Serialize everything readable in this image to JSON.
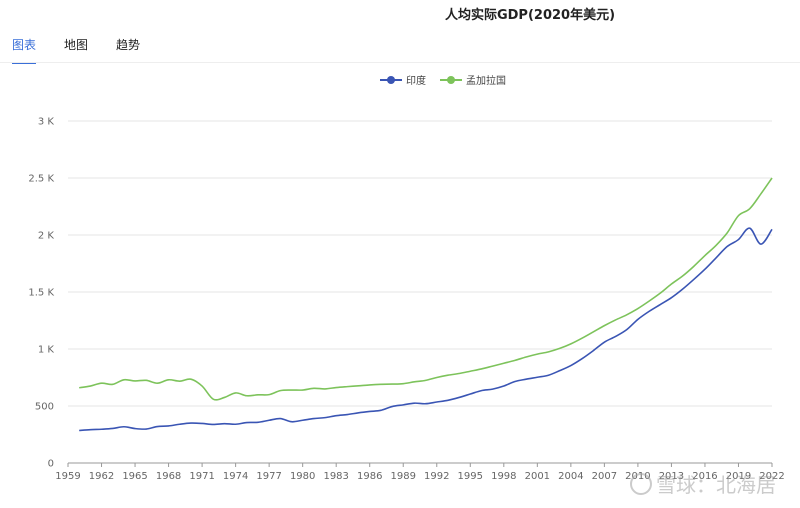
{
  "page": {
    "title": "人均实际GDP(2020年美元)"
  },
  "tabs": [
    {
      "label": "图表",
      "active": true
    },
    {
      "label": "地图",
      "active": false
    },
    {
      "label": "趋势",
      "active": false
    }
  ],
  "watermark": {
    "text": "雪球：北海居"
  },
  "chart_data": {
    "type": "line",
    "title": "人均实际GDP(2020年美元)",
    "xlabel": "",
    "ylabel": "",
    "xlim": [
      1959,
      2022
    ],
    "ylim": [
      0,
      3000
    ],
    "y_ticks": [
      0,
      500,
      1000,
      1500,
      2000,
      2500,
      3000
    ],
    "y_tick_labels": [
      "0",
      "500",
      "1 K",
      "1.5 K",
      "2 K",
      "2.5 K",
      "3 K"
    ],
    "x_ticks": [
      1959,
      1962,
      1965,
      1968,
      1971,
      1974,
      1977,
      1980,
      1983,
      1986,
      1989,
      1992,
      1995,
      1998,
      2001,
      2004,
      2007,
      2010,
      2013,
      2016,
      2019,
      2022
    ],
    "x_tick_labels": [
      "1959",
      "1962",
      "1965",
      "1968",
      "1971",
      "1974",
      "1977",
      "1980",
      "1983",
      "1986",
      "1989",
      "1992",
      "1995",
      "1998",
      "2001",
      "2004",
      "2007",
      "2010",
      "2013",
      "2016",
      "2019",
      "2022"
    ],
    "grid": true,
    "legend_position": "top-center",
    "series": [
      {
        "name": "印度",
        "color": "#3a55b4",
        "points": [
          [
            1960,
            285
          ],
          [
            1961,
            292
          ],
          [
            1962,
            296
          ],
          [
            1963,
            303
          ],
          [
            1964,
            318
          ],
          [
            1965,
            302
          ],
          [
            1966,
            298
          ],
          [
            1967,
            320
          ],
          [
            1968,
            325
          ],
          [
            1969,
            340
          ],
          [
            1970,
            350
          ],
          [
            1971,
            347
          ],
          [
            1972,
            338
          ],
          [
            1973,
            345
          ],
          [
            1974,
            340
          ],
          [
            1975,
            355
          ],
          [
            1976,
            357
          ],
          [
            1977,
            375
          ],
          [
            1978,
            390
          ],
          [
            1979,
            362
          ],
          [
            1980,
            375
          ],
          [
            1981,
            390
          ],
          [
            1982,
            398
          ],
          [
            1983,
            415
          ],
          [
            1984,
            425
          ],
          [
            1985,
            440
          ],
          [
            1986,
            452
          ],
          [
            1987,
            462
          ],
          [
            1988,
            495
          ],
          [
            1989,
            510
          ],
          [
            1990,
            525
          ],
          [
            1991,
            520
          ],
          [
            1992,
            535
          ],
          [
            1993,
            550
          ],
          [
            1994,
            575
          ],
          [
            1995,
            605
          ],
          [
            1996,
            635
          ],
          [
            1997,
            648
          ],
          [
            1998,
            675
          ],
          [
            1999,
            715
          ],
          [
            2000,
            735
          ],
          [
            2001,
            752
          ],
          [
            2002,
            770
          ],
          [
            2003,
            810
          ],
          [
            2004,
            855
          ],
          [
            2005,
            915
          ],
          [
            2006,
            985
          ],
          [
            2007,
            1060
          ],
          [
            2008,
            1110
          ],
          [
            2009,
            1170
          ],
          [
            2010,
            1260
          ],
          [
            2011,
            1330
          ],
          [
            2012,
            1390
          ],
          [
            2013,
            1450
          ],
          [
            2014,
            1525
          ],
          [
            2015,
            1610
          ],
          [
            2016,
            1700
          ],
          [
            2017,
            1800
          ],
          [
            2018,
            1900
          ],
          [
            2019,
            1960
          ],
          [
            2020,
            2060
          ],
          [
            2021,
            1920
          ],
          [
            2022,
            2050
          ]
        ]
      },
      {
        "name": "孟加拉国",
        "color": "#7dc35b",
        "points": [
          [
            1960,
            660
          ],
          [
            1961,
            675
          ],
          [
            1962,
            700
          ],
          [
            1963,
            690
          ],
          [
            1964,
            730
          ],
          [
            1965,
            720
          ],
          [
            1966,
            725
          ],
          [
            1967,
            700
          ],
          [
            1968,
            730
          ],
          [
            1969,
            718
          ],
          [
            1970,
            735
          ],
          [
            1971,
            675
          ],
          [
            1972,
            560
          ],
          [
            1973,
            575
          ],
          [
            1974,
            615
          ],
          [
            1975,
            590
          ],
          [
            1976,
            598
          ],
          [
            1977,
            600
          ],
          [
            1978,
            635
          ],
          [
            1979,
            640
          ],
          [
            1980,
            640
          ],
          [
            1981,
            655
          ],
          [
            1982,
            650
          ],
          [
            1983,
            662
          ],
          [
            1984,
            670
          ],
          [
            1985,
            677
          ],
          [
            1986,
            685
          ],
          [
            1987,
            690
          ],
          [
            1988,
            692
          ],
          [
            1989,
            696
          ],
          [
            1990,
            712
          ],
          [
            1991,
            725
          ],
          [
            1992,
            750
          ],
          [
            1993,
            770
          ],
          [
            1994,
            785
          ],
          [
            1995,
            805
          ],
          [
            1996,
            825
          ],
          [
            1997,
            850
          ],
          [
            1998,
            875
          ],
          [
            1999,
            900
          ],
          [
            2000,
            930
          ],
          [
            2001,
            955
          ],
          [
            2002,
            975
          ],
          [
            2003,
            1005
          ],
          [
            2004,
            1045
          ],
          [
            2005,
            1095
          ],
          [
            2006,
            1150
          ],
          [
            2007,
            1205
          ],
          [
            2008,
            1255
          ],
          [
            2009,
            1300
          ],
          [
            2010,
            1355
          ],
          [
            2011,
            1420
          ],
          [
            2012,
            1490
          ],
          [
            2013,
            1570
          ],
          [
            2014,
            1640
          ],
          [
            2015,
            1725
          ],
          [
            2016,
            1820
          ],
          [
            2017,
            1910
          ],
          [
            2018,
            2020
          ],
          [
            2019,
            2170
          ],
          [
            2020,
            2230
          ],
          [
            2021,
            2360
          ],
          [
            2022,
            2500
          ]
        ]
      }
    ]
  }
}
